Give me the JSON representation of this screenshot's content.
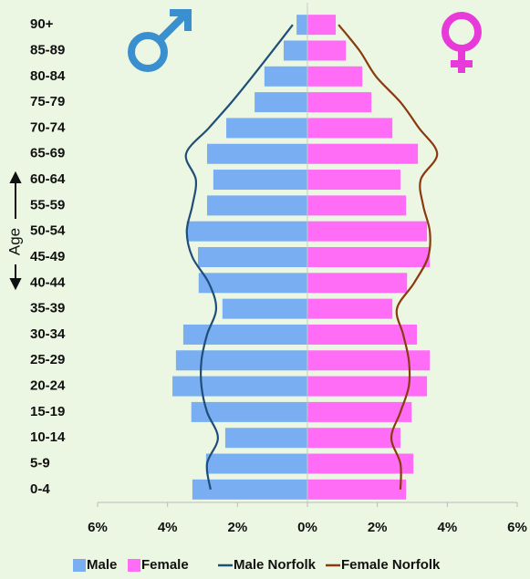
{
  "chart_data": {
    "type": "pyramid",
    "categories": [
      "90+",
      "85-89",
      "80-84",
      "75-79",
      "70-74",
      "65-69",
      "60-64",
      "55-59",
      "50-54",
      "45-49",
      "40-44",
      "35-39",
      "30-34",
      "25-29",
      "20-24",
      "15-19",
      "10-14",
      "5-9",
      "0-4"
    ],
    "y_label": "Age",
    "xlim": [
      -6,
      6
    ],
    "xticks": [
      {
        "value": -6,
        "label": "6%"
      },
      {
        "value": -4,
        "label": "4%"
      },
      {
        "value": -2,
        "label": "2%"
      },
      {
        "value": 0,
        "label": "0%"
      },
      {
        "value": 2,
        "label": "2%"
      },
      {
        "value": 4,
        "label": "4%"
      },
      {
        "value": 6,
        "label": "6%"
      }
    ],
    "series": [
      {
        "name": "Male",
        "mark": "bar",
        "side": "left",
        "color": "#79aef2",
        "values": [
          0.31,
          0.68,
          1.23,
          1.51,
          2.32,
          2.87,
          2.69,
          2.87,
          3.45,
          3.13,
          3.11,
          2.43,
          3.55,
          3.76,
          3.86,
          3.32,
          2.35,
          2.9,
          3.29
        ]
      },
      {
        "name": "Female",
        "mark": "bar",
        "side": "right",
        "color": "#ff6cf6",
        "values": [
          0.81,
          1.1,
          1.57,
          1.83,
          2.43,
          3.16,
          2.66,
          2.82,
          3.42,
          3.5,
          2.85,
          2.43,
          3.13,
          3.5,
          3.42,
          2.98,
          2.66,
          3.03,
          2.82
        ]
      },
      {
        "name": "Male Norfolk",
        "mark": "line",
        "side": "left",
        "color": "#1f4e79",
        "values": [
          0.42,
          0.99,
          1.57,
          2.17,
          2.82,
          3.47,
          3.19,
          3.29,
          3.45,
          3.29,
          2.82,
          2.61,
          2.87,
          3.03,
          3.03,
          2.87,
          2.56,
          2.87,
          2.77
        ]
      },
      {
        "name": "Female Norfolk",
        "mark": "line",
        "side": "right",
        "color": "#8b3a0f",
        "values": [
          0.89,
          1.49,
          1.96,
          2.66,
          3.19,
          3.71,
          3.24,
          3.31,
          3.5,
          3.45,
          3.05,
          2.56,
          2.74,
          2.9,
          2.9,
          2.66,
          2.4,
          2.66,
          2.66
        ]
      }
    ]
  }
}
